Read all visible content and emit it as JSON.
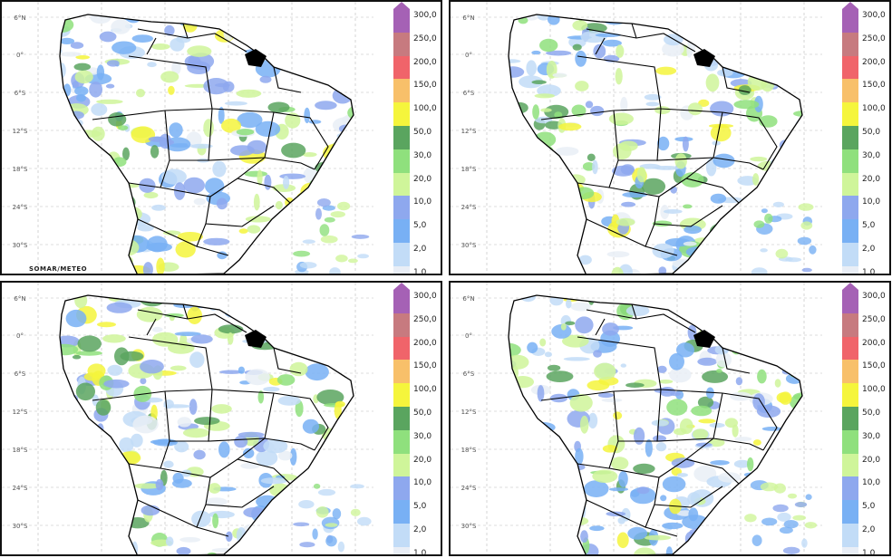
{
  "figure": {
    "panels": [
      {
        "id": "top-left",
        "credit": "SOMAR/METEO"
      },
      {
        "id": "top-right",
        "credit": ""
      },
      {
        "id": "bottom-left",
        "credit": ""
      },
      {
        "id": "bottom-right",
        "credit": ""
      }
    ]
  },
  "latitude_labels": [
    "6°N",
    "0°",
    "6°S",
    "12°S",
    "18°S",
    "24°S",
    "30°S"
  ],
  "legend": {
    "labels": [
      "300,0",
      "250,0",
      "200,0",
      "150,0",
      "100,0",
      "50,0",
      "30,0",
      "20,0",
      "10,0",
      "5,0",
      "2,0",
      "1,0"
    ],
    "colors": [
      "#a561b5",
      "#c77a7f",
      "#f0646a",
      "#f8c06a",
      "#f5f53c",
      "#5aa55f",
      "#8fe07d",
      "#cff59a",
      "#8ea8ee",
      "#78b0f4",
      "#c2dcf7",
      "#e9eef6"
    ],
    "arrow_color": "#a561b5"
  }
}
